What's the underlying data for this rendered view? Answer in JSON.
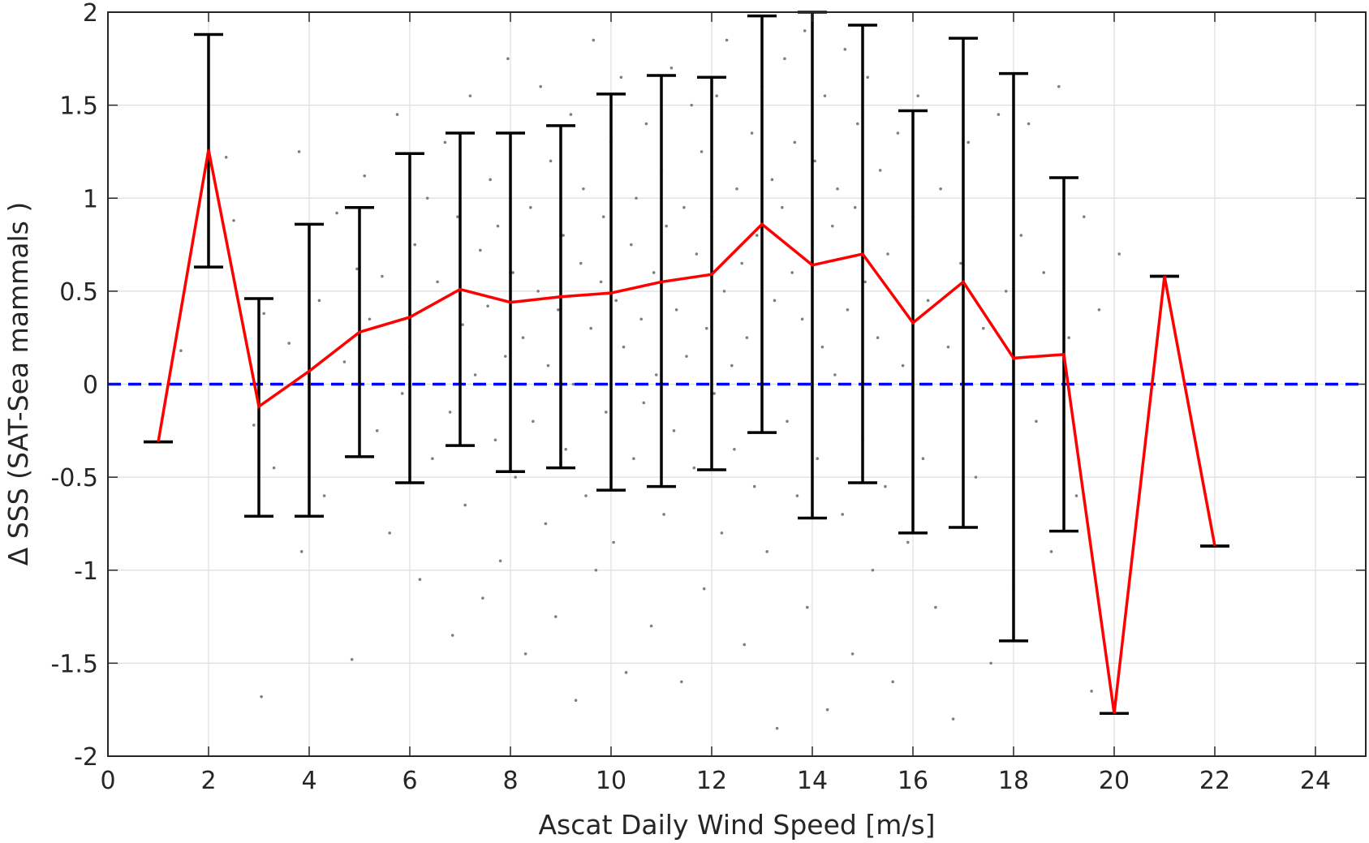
{
  "chart_data": {
    "type": "line",
    "title": "",
    "xlabel": "Ascat Daily Wind Speed [m/s]",
    "ylabel": "Δ SSS (SAT-Sea mammals )",
    "xlim": [
      0,
      25
    ],
    "ylim": [
      -2,
      2
    ],
    "x_ticks": [
      0,
      2,
      4,
      6,
      8,
      10,
      12,
      14,
      16,
      18,
      20,
      22,
      24
    ],
    "y_ticks": [
      -2,
      -1.5,
      -1,
      -0.5,
      0,
      0.5,
      1,
      1.5,
      2
    ],
    "grid": true,
    "legend": "none",
    "colors": {
      "mean_line": "#ff0000",
      "error_bars": "#000000",
      "zero_line": "#0000ff",
      "scatter": "#7f7f7f"
    },
    "series": [
      {
        "x": [
          1,
          2,
          3,
          4,
          5,
          6,
          7,
          8,
          9,
          10,
          11,
          12,
          13,
          14,
          15,
          16,
          17,
          18,
          19,
          20,
          21,
          22
        ],
        "y": [
          -0.31,
          1.26,
          -0.12,
          0.07,
          0.28,
          0.36,
          0.51,
          0.44,
          0.47,
          0.49,
          0.55,
          0.59,
          0.86,
          0.64,
          0.7,
          0.33,
          0.55,
          0.14,
          0.16,
          -1.77,
          0.58,
          -0.87
        ],
        "lower": [
          -0.31,
          0.63,
          -0.71,
          -0.71,
          -0.39,
          -0.53,
          -0.33,
          -0.47,
          -0.45,
          -0.57,
          -0.55,
          -0.46,
          -0.26,
          -0.72,
          -0.53,
          -0.8,
          -0.77,
          -1.38,
          -0.79,
          -1.77,
          0.58,
          -0.87
        ],
        "upper": [
          -0.31,
          1.88,
          0.46,
          0.86,
          0.95,
          1.24,
          1.35,
          1.35,
          1.39,
          1.56,
          1.66,
          1.65,
          1.98,
          2.0,
          1.93,
          1.47,
          1.86,
          1.67,
          1.11,
          -1.77,
          0.58,
          -0.87
        ]
      },
      {
        "x": [
          0,
          25
        ],
        "y": [
          0,
          0
        ]
      }
    ],
    "scatter_points": [
      [
        1.45,
        0.18
      ],
      [
        2.0,
        1.05
      ],
      [
        2.35,
        1.22
      ],
      [
        2.5,
        0.88
      ],
      [
        2.9,
        -0.22
      ],
      [
        3.1,
        0.38
      ],
      [
        3.3,
        -0.45
      ],
      [
        3.6,
        0.22
      ],
      [
        3.05,
        -1.68
      ],
      [
        3.8,
        1.25
      ],
      [
        3.85,
        -0.9
      ],
      [
        4.2,
        0.45
      ],
      [
        4.3,
        -0.6
      ],
      [
        4.55,
        0.92
      ],
      [
        4.7,
        0.12
      ],
      [
        4.85,
        -1.48
      ],
      [
        4.95,
        0.62
      ],
      [
        5.1,
        1.12
      ],
      [
        5.2,
        0.35
      ],
      [
        5.35,
        -0.25
      ],
      [
        5.45,
        0.58
      ],
      [
        5.6,
        -0.8
      ],
      [
        5.75,
        1.45
      ],
      [
        5.85,
        -0.05
      ],
      [
        6.0,
        0.2
      ],
      [
        6.1,
        0.75
      ],
      [
        6.2,
        -1.05
      ],
      [
        6.35,
        1.0
      ],
      [
        6.45,
        -0.4
      ],
      [
        6.55,
        0.55
      ],
      [
        6.7,
        1.3
      ],
      [
        6.8,
        -0.15
      ],
      [
        6.85,
        -1.35
      ],
      [
        6.95,
        0.9
      ],
      [
        7.05,
        0.32
      ],
      [
        7.1,
        -0.65
      ],
      [
        7.2,
        1.55
      ],
      [
        7.3,
        0.05
      ],
      [
        7.4,
        0.72
      ],
      [
        7.45,
        -1.15
      ],
      [
        7.55,
        0.42
      ],
      [
        7.6,
        1.1
      ],
      [
        7.7,
        -0.3
      ],
      [
        7.75,
        0.85
      ],
      [
        7.8,
        -0.95
      ],
      [
        7.9,
        0.15
      ],
      [
        7.95,
        1.75
      ],
      [
        8.05,
        0.6
      ],
      [
        8.1,
        -0.5
      ],
      [
        8.2,
        1.35
      ],
      [
        8.25,
        0.25
      ],
      [
        8.3,
        -1.45
      ],
      [
        8.4,
        0.95
      ],
      [
        8.45,
        -0.2
      ],
      [
        8.55,
        0.5
      ],
      [
        8.6,
        1.6
      ],
      [
        8.7,
        -0.75
      ],
      [
        8.75,
        0.1
      ],
      [
        8.8,
        1.2
      ],
      [
        8.9,
        -1.25
      ],
      [
        8.95,
        0.4
      ],
      [
        9.05,
        0.8
      ],
      [
        9.1,
        -0.35
      ],
      [
        9.2,
        1.45
      ],
      [
        9.25,
        0.0
      ],
      [
        9.3,
        -1.7
      ],
      [
        9.4,
        0.65
      ],
      [
        9.45,
        1.05
      ],
      [
        9.5,
        -0.6
      ],
      [
        9.6,
        0.3
      ],
      [
        9.65,
        1.85
      ],
      [
        9.7,
        -1.0
      ],
      [
        9.8,
        0.55
      ],
      [
        9.85,
        0.9
      ],
      [
        9.9,
        -0.15
      ],
      [
        10.0,
        1.3
      ],
      [
        10.05,
        -0.85
      ],
      [
        10.1,
        0.45
      ],
      [
        10.2,
        1.65
      ],
      [
        10.25,
        0.2
      ],
      [
        10.3,
        -1.55
      ],
      [
        10.4,
        0.75
      ],
      [
        10.45,
        -0.4
      ],
      [
        10.5,
        1.0
      ],
      [
        10.6,
        0.35
      ],
      [
        10.65,
        -0.1
      ],
      [
        10.7,
        1.4
      ],
      [
        10.8,
        -1.3
      ],
      [
        10.85,
        0.6
      ],
      [
        10.9,
        0.05
      ],
      [
        11.0,
        1.15
      ],
      [
        11.05,
        -0.7
      ],
      [
        11.1,
        0.85
      ],
      [
        11.2,
        1.7
      ],
      [
        11.25,
        -0.25
      ],
      [
        11.3,
        0.4
      ],
      [
        11.4,
        -1.6
      ],
      [
        11.45,
        0.95
      ],
      [
        11.5,
        0.15
      ],
      [
        11.6,
        1.5
      ],
      [
        11.65,
        -0.45
      ],
      [
        11.7,
        0.7
      ],
      [
        11.8,
        1.25
      ],
      [
        11.85,
        -1.1
      ],
      [
        11.9,
        0.3
      ],
      [
        12.0,
        0.9
      ],
      [
        12.05,
        -0.05
      ],
      [
        12.1,
        1.55
      ],
      [
        12.2,
        -0.8
      ],
      [
        12.25,
        0.5
      ],
      [
        12.3,
        1.85
      ],
      [
        12.4,
        0.1
      ],
      [
        12.45,
        -0.35
      ],
      [
        12.5,
        1.05
      ],
      [
        12.6,
        0.65
      ],
      [
        12.65,
        -1.4
      ],
      [
        12.7,
        0.25
      ],
      [
        12.8,
        1.35
      ],
      [
        12.85,
        -0.55
      ],
      [
        12.9,
        0.8
      ],
      [
        13.0,
        1.6
      ],
      [
        13.05,
        0.0
      ],
      [
        13.1,
        -0.9
      ],
      [
        13.2,
        1.1
      ],
      [
        13.25,
        0.45
      ],
      [
        13.3,
        -1.85
      ],
      [
        13.4,
        0.95
      ],
      [
        13.45,
        1.75
      ],
      [
        13.5,
        -0.2
      ],
      [
        13.6,
        0.6
      ],
      [
        13.65,
        1.3
      ],
      [
        13.7,
        -0.6
      ],
      [
        13.8,
        0.35
      ],
      [
        13.85,
        1.9
      ],
      [
        13.9,
        -1.2
      ],
      [
        14.0,
        0.75
      ],
      [
        14.05,
        1.2
      ],
      [
        14.1,
        -0.4
      ],
      [
        14.2,
        0.2
      ],
      [
        14.25,
        1.55
      ],
      [
        14.3,
        -1.75
      ],
      [
        14.4,
        0.85
      ],
      [
        14.45,
        0.05
      ],
      [
        14.5,
        1.05
      ],
      [
        14.6,
        -0.7
      ],
      [
        14.65,
        1.8
      ],
      [
        14.7,
        0.4
      ],
      [
        14.8,
        -1.45
      ],
      [
        14.85,
        0.95
      ],
      [
        14.9,
        1.4
      ],
      [
        15.0,
        -0.3
      ],
      [
        15.05,
        0.55
      ],
      [
        15.1,
        1.65
      ],
      [
        15.2,
        -1.0
      ],
      [
        15.3,
        0.25
      ],
      [
        15.35,
        1.15
      ],
      [
        15.45,
        -0.55
      ],
      [
        15.5,
        0.7
      ],
      [
        15.6,
        -1.6
      ],
      [
        15.7,
        1.35
      ],
      [
        15.8,
        0.1
      ],
      [
        15.9,
        -0.85
      ],
      [
        16.0,
        0.9
      ],
      [
        16.1,
        1.55
      ],
      [
        16.2,
        -0.4
      ],
      [
        16.3,
        0.45
      ],
      [
        16.45,
        -1.2
      ],
      [
        16.55,
        1.05
      ],
      [
        16.7,
        0.2
      ],
      [
        16.8,
        -1.8
      ],
      [
        16.95,
        0.65
      ],
      [
        17.1,
        1.3
      ],
      [
        17.25,
        -0.5
      ],
      [
        17.4,
        0.3
      ],
      [
        17.55,
        -1.5
      ],
      [
        17.7,
        1.45
      ],
      [
        17.85,
        0.5
      ],
      [
        18.0,
        -1.1
      ],
      [
        18.15,
        0.8
      ],
      [
        18.3,
        1.4
      ],
      [
        18.45,
        -0.2
      ],
      [
        18.6,
        0.6
      ],
      [
        18.75,
        -0.9
      ],
      [
        18.9,
        1.6
      ],
      [
        19.1,
        0.25
      ],
      [
        19.25,
        -0.6
      ],
      [
        19.4,
        0.9
      ],
      [
        19.55,
        -1.65
      ],
      [
        19.7,
        0.4
      ],
      [
        20.1,
        0.7
      ]
    ]
  }
}
